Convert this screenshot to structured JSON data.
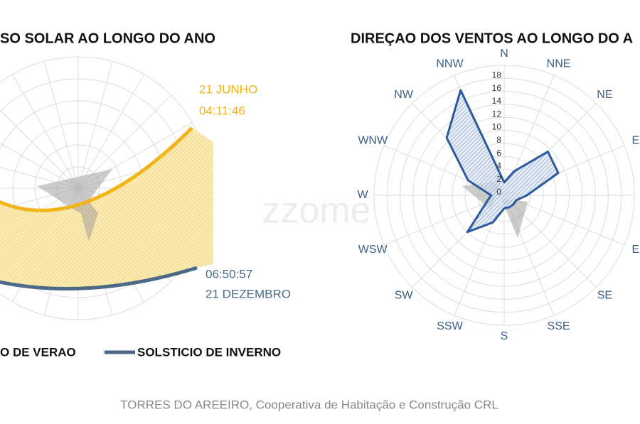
{
  "chart_data": [
    {
      "type": "sun-path",
      "title": "SO SOLAR AO LONGO DO ANO",
      "series": [
        {
          "name": "O DE VERAO",
          "color": "#f2b418"
        },
        {
          "name": "SOLSTICIO DE INVERNO",
          "color": "#4c6a88"
        }
      ],
      "annotations": [
        [
          "21 JUNHO",
          "04:11:46"
        ],
        [
          "06:50:57",
          "21 DEZEMBRO"
        ]
      ]
    },
    {
      "type": "radar",
      "title": "DIREÇAO DOS VENTOS AO LONGO DO A",
      "categories": [
        "N",
        "NNE",
        "NE",
        "E",
        null,
        "E",
        "SE",
        "SSE",
        "S",
        "SSW",
        "SW",
        "WSW",
        "W",
        "WNW",
        "NW",
        "NNW"
      ],
      "values": [
        2,
        4,
        9.5,
        9,
        3.5,
        2,
        2,
        2,
        2,
        4.5,
        8,
        3,
        2,
        6,
        12.5,
        17.5
      ],
      "color": "#2d5a9e",
      "ylim": [
        0,
        20
      ],
      "yticks": [
        0,
        2,
        4,
        6,
        8,
        10,
        12,
        14,
        16,
        18
      ],
      "grid": true
    }
  ],
  "watermark": "zzome",
  "footer": "TORRES DO AREEIRO, Cooperativa de Habitação e Construção CRL"
}
